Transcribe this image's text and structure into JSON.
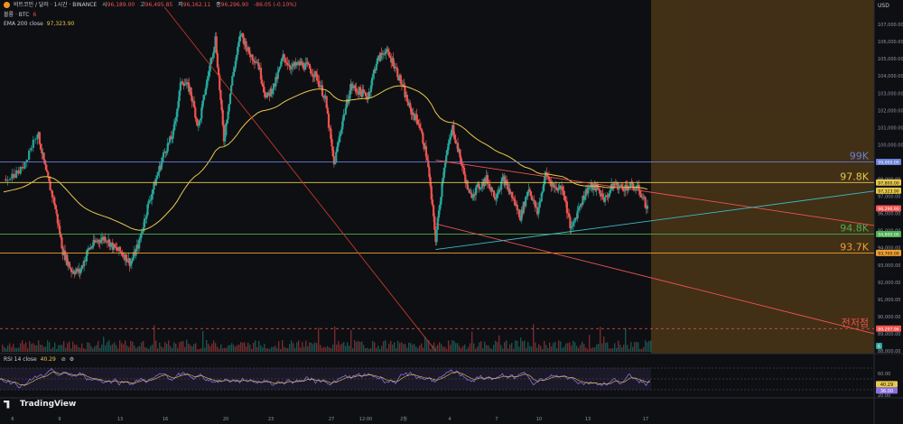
{
  "header": {
    "title": "비트코인 / 달러 · 1시간 · BINANCE",
    "open_label": "시",
    "open": "96,189.00",
    "high_label": "고",
    "high": "96,495.85",
    "low_label": "저",
    "low": "96,162.11",
    "close_label": "종",
    "close": "96,296.90",
    "change": "-86.05 (-0.10%)",
    "volume_label": "볼륨 · BTC",
    "volume_value": "6",
    "ema_label": "EMA 200 close",
    "ema_value": "97,323.90",
    "rsi_label": "RSI 14 close",
    "rsi_value": "40.29",
    "currency": "USD"
  },
  "brand": "TradingView",
  "colors": {
    "bg": "#0e0f13",
    "up": "#26a69a",
    "down": "#ef5350",
    "ema": "#e8c84a",
    "orange": "#f0a030",
    "blue": "#6b7fd7",
    "green": "#4caf50",
    "cyan": "#3fb8c0",
    "red_line": "#c0392b",
    "rsi": "#8a6fe0",
    "highlight": "#c88a2a"
  },
  "chart_data": [
    {
      "type": "candlestick",
      "symbol": "BTC/USD",
      "interval": "1h",
      "ylim": [
        88000,
        108000
      ],
      "y_ticks": [
        "107,000.00",
        "106,000.00",
        "105,000.00",
        "104,000.00",
        "103,000.00",
        "102,000.00",
        "101,000.00",
        "100,000.00",
        "99,000.00",
        "98,000.00",
        "97,000.00",
        "96,000.00",
        "95,000.00",
        "94,000.00",
        "93,000.00",
        "92,000.00",
        "91,000.00",
        "90,000.00",
        "89,000.00",
        "88,000.00"
      ],
      "x_ticks": [
        "6",
        "9",
        "13",
        "16",
        "20",
        "23",
        "27",
        "12:00",
        "2월",
        "4",
        "7",
        "10",
        "13",
        "17"
      ],
      "price_path_approx": [
        [
          0,
          98000
        ],
        [
          2,
          98500
        ],
        [
          4,
          100800
        ],
        [
          5,
          98400
        ],
        [
          6,
          96600
        ],
        [
          7,
          93800
        ],
        [
          8,
          92700
        ],
        [
          9,
          92600
        ],
        [
          10,
          93900
        ],
        [
          11,
          94400
        ],
        [
          12,
          94600
        ],
        [
          13,
          94000
        ],
        [
          14,
          93700
        ],
        [
          15,
          93100
        ],
        [
          16,
          94300
        ],
        [
          17,
          96400
        ],
        [
          18,
          98000
        ],
        [
          19,
          99600
        ],
        [
          20,
          100600
        ],
        [
          21,
          103800
        ],
        [
          22,
          103200
        ],
        [
          23,
          101000
        ],
        [
          24,
          103700
        ],
        [
          25,
          106200
        ],
        [
          26,
          100300
        ],
        [
          27,
          103900
        ],
        [
          28,
          106500
        ],
        [
          29,
          105300
        ],
        [
          30,
          104800
        ],
        [
          31,
          102700
        ],
        [
          32,
          103500
        ],
        [
          33,
          105100
        ],
        [
          34,
          104500
        ],
        [
          35,
          104700
        ],
        [
          36,
          104500
        ],
        [
          37,
          103900
        ],
        [
          38,
          102600
        ],
        [
          39,
          98800
        ],
        [
          40,
          101400
        ],
        [
          41,
          103400
        ],
        [
          42,
          103100
        ],
        [
          43,
          102800
        ],
        [
          44,
          104800
        ],
        [
          45,
          105500
        ],
        [
          46,
          104800
        ],
        [
          47,
          103500
        ],
        [
          48,
          102000
        ],
        [
          49,
          101300
        ],
        [
          50,
          99200
        ],
        [
          51,
          94500
        ],
        [
          52,
          98800
        ],
        [
          53,
          101000
        ],
        [
          54,
          99000
        ],
        [
          55,
          97000
        ],
        [
          56,
          97500
        ],
        [
          57,
          98000
        ],
        [
          58,
          97000
        ],
        [
          59,
          98000
        ],
        [
          60,
          97000
        ],
        [
          61,
          95800
        ],
        [
          62,
          97500
        ],
        [
          63,
          96000
        ],
        [
          64,
          98300
        ],
        [
          65,
          97500
        ],
        [
          66,
          97500
        ],
        [
          67,
          95000
        ],
        [
          68,
          96500
        ],
        [
          69,
          97500
        ],
        [
          70,
          97500
        ],
        [
          71,
          96800
        ],
        [
          72,
          97700
        ],
        [
          73,
          97500
        ],
        [
          74,
          97600
        ],
        [
          75,
          97400
        ],
        [
          76,
          96296.9
        ]
      ],
      "overlays": [
        {
          "name": "EMA 200 close",
          "value": 97323.9
        },
        {
          "label": "99K",
          "value": 99000
        },
        {
          "label": "97.8K",
          "value": 97800
        },
        {
          "label": "94.8K",
          "value": 94800
        },
        {
          "label": "93.7K",
          "value": 93700
        },
        {
          "label": "전저점",
          "value": 89297.96
        }
      ],
      "price_tags": [
        {
          "text": "99,000.00",
          "value": 99000
        },
        {
          "text": "97,800.00",
          "value": 97800
        },
        {
          "text": "97,323.90",
          "value": 97323.9
        },
        {
          "text": "96,296.90",
          "value": 96296.9
        },
        {
          "text": "94,800.00",
          "value": 94800
        },
        {
          "text": "93,700.00",
          "value": 93700
        },
        {
          "text": "89,297.96",
          "value": 89297.96
        }
      ],
      "volume_badge": "6"
    },
    {
      "type": "line",
      "name": "RSI",
      "ylim": [
        20,
        80
      ],
      "y_ticks": [
        "60.00",
        "40.00",
        "20.00"
      ],
      "last": 40.29,
      "ref_tag": "36.00"
    }
  ]
}
